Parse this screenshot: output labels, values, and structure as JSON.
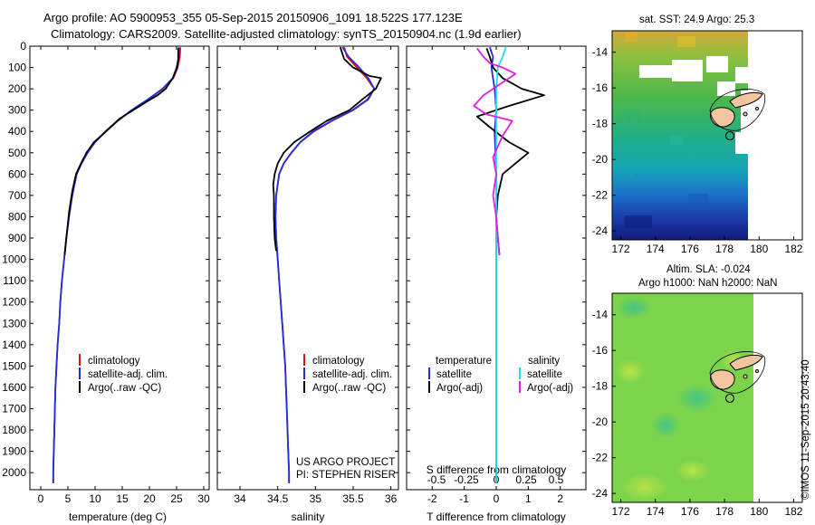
{
  "header": {
    "title_line1": "Argo profile: AO 5900953_355 05-Sep-2015 20150906_1091 18.522S 177.123E",
    "title_line2": "Climatology: CARS2009. Satellite-adjusted climatology: synTS_20150904.nc (1.9d earlier)"
  },
  "colors": {
    "climatology": "#dd1111",
    "satellite": "#1f2fe0",
    "argo": "#000000",
    "salinity_satellite": "#22e0e0",
    "salinity_argo": "#e020e0"
  },
  "chart_data": [
    {
      "type": "line",
      "id": "temperature",
      "xlabel": "temperature (deg C)",
      "ylabel": "",
      "xlim": [
        -2,
        31
      ],
      "ylim": [
        2080,
        0
      ],
      "xticks": [
        "0",
        "5",
        "10",
        "15",
        "20",
        "25",
        "30"
      ],
      "yticks": [
        "0",
        "100",
        "200",
        "300",
        "400",
        "500",
        "600",
        "700",
        "800",
        "900",
        "1000",
        "1100",
        "1200",
        "1300",
        "1400",
        "1500",
        "1600",
        "1700",
        "1800",
        "1900",
        "2000"
      ],
      "legend": [
        "climatology",
        "satellite-adj. clim.",
        "Argo(..raw -QC)"
      ],
      "series": [
        {
          "name": "climatology",
          "color": "#dd1111",
          "points": [
            [
              25.7,
              5
            ],
            [
              25.6,
              50
            ],
            [
              25.2,
              100
            ],
            [
              24.4,
              150
            ],
            [
              22.5,
              200
            ],
            [
              19.8,
              250
            ],
            [
              16.8,
              300
            ],
            [
              14.2,
              350
            ],
            [
              12.0,
              400
            ],
            [
              10.0,
              450
            ],
            [
              8.6,
              500
            ],
            [
              7.5,
              550
            ],
            [
              6.6,
              600
            ],
            [
              5.8,
              700
            ],
            [
              5.2,
              800
            ],
            [
              4.7,
              900
            ],
            [
              4.3,
              1000
            ],
            [
              3.9,
              1100
            ],
            [
              3.6,
              1200
            ],
            [
              3.4,
              1300
            ],
            [
              3.1,
              1400
            ],
            [
              2.9,
              1500
            ],
            [
              2.7,
              1600
            ],
            [
              2.6,
              1700
            ],
            [
              2.5,
              1800
            ],
            [
              2.4,
              1900
            ],
            [
              2.3,
              2000
            ],
            [
              2.3,
              2050
            ]
          ]
        },
        {
          "name": "satellite-adj. clim.",
          "color": "#1f2fe0",
          "points": [
            [
              25.4,
              5
            ],
            [
              25.4,
              50
            ],
            [
              25.0,
              100
            ],
            [
              24.3,
              150
            ],
            [
              22.4,
              200
            ],
            [
              19.7,
              250
            ],
            [
              16.7,
              300
            ],
            [
              14.1,
              350
            ],
            [
              11.9,
              400
            ],
            [
              10.0,
              450
            ],
            [
              8.6,
              500
            ],
            [
              7.5,
              550
            ],
            [
              6.6,
              600
            ],
            [
              5.8,
              700
            ],
            [
              5.2,
              800
            ],
            [
              4.7,
              900
            ],
            [
              4.3,
              1000
            ],
            [
              3.9,
              1100
            ],
            [
              3.6,
              1200
            ],
            [
              3.4,
              1300
            ],
            [
              3.1,
              1400
            ],
            [
              2.9,
              1500
            ],
            [
              2.7,
              1600
            ],
            [
              2.6,
              1700
            ],
            [
              2.5,
              1800
            ],
            [
              2.4,
              1900
            ],
            [
              2.3,
              2000
            ],
            [
              2.3,
              2050
            ]
          ]
        },
        {
          "name": "Argo(..raw -QC)",
          "color": "#000000",
          "points": [
            [
              25.3,
              10
            ],
            [
              25.3,
              60
            ],
            [
              25.1,
              100
            ],
            [
              24.3,
              150
            ],
            [
              23.0,
              200
            ],
            [
              21.5,
              230
            ],
            [
              19.5,
              260
            ],
            [
              17.0,
              300
            ],
            [
              14.5,
              340
            ],
            [
              12.0,
              400
            ],
            [
              9.8,
              450
            ],
            [
              8.4,
              500
            ],
            [
              7.4,
              550
            ],
            [
              6.5,
              600
            ],
            [
              5.8,
              680
            ],
            [
              5.2,
              780
            ],
            [
              4.8,
              880
            ],
            [
              4.4,
              980
            ]
          ]
        }
      ]
    },
    {
      "type": "line",
      "id": "salinity",
      "xlabel": "salinity",
      "ylabel": "",
      "xlim": [
        33.7,
        36.1
      ],
      "ylim": [
        2080,
        0
      ],
      "xticks": [
        "34",
        "34.5",
        "35",
        "35.5",
        "36"
      ],
      "legend": [
        "climatology",
        "satellite-adj. clim.",
        "Argo(..raw -QC)"
      ],
      "annotations": [
        "US ARGO PROJECT",
        "PI: STEPHEN RISER"
      ],
      "series": [
        {
          "name": "climatology",
          "color": "#dd1111",
          "points": [
            [
              35.38,
              5
            ],
            [
              35.42,
              50
            ],
            [
              35.55,
              100
            ],
            [
              35.68,
              150
            ],
            [
              35.78,
              200
            ],
            [
              35.7,
              250
            ],
            [
              35.5,
              300
            ],
            [
              35.22,
              350
            ],
            [
              34.98,
              400
            ],
            [
              34.8,
              450
            ],
            [
              34.68,
              500
            ],
            [
              34.58,
              550
            ],
            [
              34.52,
              600
            ],
            [
              34.48,
              700
            ],
            [
              34.47,
              800
            ],
            [
              34.48,
              900
            ],
            [
              34.5,
              1000
            ],
            [
              34.52,
              1100
            ],
            [
              34.54,
              1200
            ],
            [
              34.56,
              1300
            ],
            [
              34.58,
              1400
            ],
            [
              34.6,
              1500
            ],
            [
              34.61,
              1600
            ],
            [
              34.62,
              1700
            ],
            [
              34.63,
              1800
            ],
            [
              34.64,
              1900
            ],
            [
              34.65,
              2000
            ],
            [
              34.65,
              2050
            ]
          ]
        },
        {
          "name": "satellite-adj. clim.",
          "color": "#1f2fe0",
          "points": [
            [
              35.36,
              5
            ],
            [
              35.44,
              50
            ],
            [
              35.58,
              100
            ],
            [
              35.7,
              150
            ],
            [
              35.78,
              200
            ],
            [
              35.69,
              250
            ],
            [
              35.49,
              300
            ],
            [
              35.21,
              350
            ],
            [
              34.97,
              400
            ],
            [
              34.8,
              450
            ],
            [
              34.68,
              500
            ],
            [
              34.58,
              550
            ],
            [
              34.52,
              600
            ],
            [
              34.48,
              700
            ],
            [
              34.47,
              800
            ],
            [
              34.48,
              900
            ],
            [
              34.5,
              1000
            ],
            [
              34.52,
              1100
            ],
            [
              34.54,
              1200
            ],
            [
              34.56,
              1300
            ],
            [
              34.58,
              1400
            ],
            [
              34.6,
              1500
            ],
            [
              34.61,
              1600
            ],
            [
              34.62,
              1700
            ],
            [
              34.63,
              1800
            ],
            [
              34.64,
              1900
            ],
            [
              34.65,
              2000
            ],
            [
              34.65,
              2050
            ]
          ]
        },
        {
          "name": "Argo(..raw -QC)",
          "color": "#000000",
          "points": [
            [
              35.33,
              5
            ],
            [
              35.38,
              60
            ],
            [
              35.5,
              100
            ],
            [
              35.72,
              140
            ],
            [
              35.87,
              150
            ],
            [
              35.8,
              200
            ],
            [
              35.62,
              250
            ],
            [
              35.45,
              300
            ],
            [
              35.15,
              350
            ],
            [
              34.93,
              400
            ],
            [
              34.72,
              450
            ],
            [
              34.58,
              500
            ],
            [
              34.5,
              550
            ],
            [
              34.46,
              600
            ],
            [
              34.44,
              650
            ],
            [
              34.45,
              700
            ],
            [
              34.45,
              800
            ],
            [
              34.46,
              900
            ],
            [
              34.48,
              960
            ]
          ]
        }
      ]
    },
    {
      "type": "line",
      "id": "difference",
      "xlabel": "T difference from climatology",
      "xlabel_top": "S difference from climatology",
      "xlim": [
        -2.8,
        2.8
      ],
      "ylim": [
        2080,
        0
      ],
      "xticks": [
        "-2",
        "-1",
        "0",
        "1",
        "2"
      ],
      "xticks_top": [
        "-0.5",
        "-0.25",
        "0",
        "0.25",
        "0.5"
      ],
      "legend_titles": [
        "temperature",
        "salinity"
      ],
      "legend": [
        "satellite",
        "Argo(-adj)",
        "satellite",
        "Argo(-adj)"
      ],
      "series": [
        {
          "name": "satellite",
          "color": "#1f2fe0",
          "points": [
            [
              -0.2,
              5
            ],
            [
              -0.1,
              50
            ],
            [
              -0.15,
              100
            ],
            [
              -0.05,
              200
            ],
            [
              0.0,
              300
            ],
            [
              -0.05,
              400
            ],
            [
              0.0,
              600
            ],
            [
              0.0,
              1000
            ],
            [
              0.0,
              2050
            ]
          ]
        },
        {
          "name": "Argo(-adj)",
          "color": "#000000",
          "points": [
            [
              -0.3,
              10
            ],
            [
              -0.2,
              50
            ],
            [
              -0.1,
              100
            ],
            [
              0.2,
              150
            ],
            [
              0.8,
              200
            ],
            [
              1.5,
              230
            ],
            [
              0.4,
              280
            ],
            [
              -0.6,
              330
            ],
            [
              -0.2,
              380
            ],
            [
              0.4,
              450
            ],
            [
              1.0,
              500
            ],
            [
              0.6,
              550
            ],
            [
              0.2,
              600
            ],
            [
              0.05,
              700
            ],
            [
              0.0,
              800
            ],
            [
              0.05,
              900
            ],
            [
              0.1,
              980
            ]
          ]
        },
        {
          "name": "satellite",
          "color": "#22e0e0",
          "points": [
            [
              0.3,
              5
            ],
            [
              0.2,
              50
            ],
            [
              0.05,
              100
            ],
            [
              0.0,
              200
            ],
            [
              0.0,
              400
            ],
            [
              0.0,
              800
            ],
            [
              0.0,
              1200
            ],
            [
              0.0,
              2050
            ]
          ]
        },
        {
          "name": "Argo(-adj)",
          "color": "#e020e0",
          "points": [
            [
              -0.6,
              10
            ],
            [
              -0.4,
              50
            ],
            [
              -0.2,
              80
            ],
            [
              0.2,
              100
            ],
            [
              0.6,
              130
            ],
            [
              0.2,
              170
            ],
            [
              -0.4,
              230
            ],
            [
              -0.7,
              280
            ],
            [
              -0.3,
              320
            ],
            [
              0.5,
              350
            ],
            [
              0.2,
              420
            ],
            [
              -0.1,
              520
            ],
            [
              0.0,
              600
            ],
            [
              -0.1,
              700
            ],
            [
              0.0,
              800
            ],
            [
              0.05,
              900
            ],
            [
              0.1,
              980
            ]
          ]
        }
      ]
    },
    {
      "type": "heatmap",
      "id": "sst-map",
      "title": "sat. SST: 24.9  Argo: 25.3",
      "xlim": [
        171.5,
        182.5
      ],
      "ylim": [
        -24.5,
        -12.8
      ],
      "xticks": [
        "172",
        "174",
        "176",
        "178",
        "180",
        "182"
      ],
      "yticks": [
        "-14",
        "-16",
        "-18",
        "-20",
        "-22",
        "-24"
      ],
      "argo_position": [
        177.1,
        -18.5
      ]
    },
    {
      "type": "heatmap",
      "id": "sla-map",
      "title_line1": "Altim. SLA: -0.024",
      "title_line2": "Argo h1000: NaN h2000: NaN",
      "xlim": [
        171.5,
        182.5
      ],
      "ylim": [
        -24.5,
        -12.8
      ],
      "xticks": [
        "172",
        "174",
        "176",
        "178",
        "180",
        "182"
      ],
      "yticks": [
        "-14",
        "-16",
        "-18",
        "-20",
        "-22",
        "-24"
      ],
      "argo_position": [
        177.1,
        -18.5
      ]
    }
  ],
  "footer": {
    "stamp": "©IMOS 11-Sep-2015 20:43:40"
  }
}
